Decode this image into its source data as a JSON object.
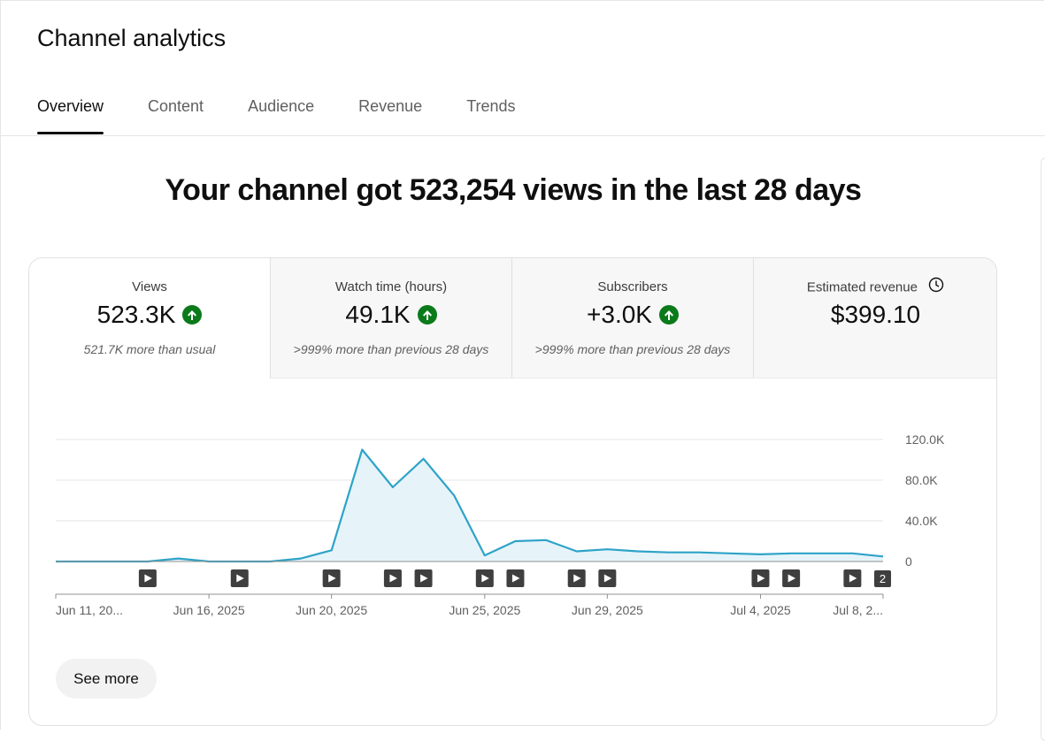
{
  "page_title": "Channel analytics",
  "tabs": [
    {
      "label": "Overview",
      "active": true
    },
    {
      "label": "Content",
      "active": false
    },
    {
      "label": "Audience",
      "active": false
    },
    {
      "label": "Revenue",
      "active": false
    },
    {
      "label": "Trends",
      "active": false
    }
  ],
  "headline": "Your channel got 523,254 views in the last 28 days",
  "metrics": [
    {
      "label": "Views",
      "value": "523.3K",
      "trend": "up",
      "sub": "521.7K more than usual"
    },
    {
      "label": "Watch time (hours)",
      "value": "49.1K",
      "trend": "up",
      "sub": ">999% more than previous 28 days"
    },
    {
      "label": "Subscribers",
      "value": "+3.0K",
      "trend": "up",
      "sub": ">999% more than previous 28 days"
    },
    {
      "label": "Estimated revenue",
      "value": "$399.10",
      "icon": "clock-icon"
    }
  ],
  "colors": {
    "line": "#2ea3c8",
    "area": "#e6f4fa",
    "trend_up": "#0b7a1a"
  },
  "chart_data": {
    "type": "area",
    "series": [
      {
        "values": [
          0,
          0,
          0,
          0,
          3000,
          0,
          0,
          0,
          3000,
          11000,
          110000,
          73000,
          101000,
          65000,
          6000,
          20000,
          21000,
          10000,
          12000,
          10000,
          9000,
          9000,
          8000,
          7000,
          8000,
          8000,
          8000,
          5000
        ]
      }
    ],
    "y_ticks": [
      "120.0K",
      "80.0K",
      "40.0K",
      "0"
    ],
    "y_tick_values": [
      120000,
      80000,
      40000,
      0
    ],
    "ylim": [
      0,
      120000
    ],
    "x_tick_labels": [
      {
        "index": 0,
        "label": "Jun 11, 20..."
      },
      {
        "index": 5,
        "label": "Jun 16, 2025"
      },
      {
        "index": 9,
        "label": "Jun 20, 2025"
      },
      {
        "index": 14,
        "label": "Jun 25, 2025"
      },
      {
        "index": 18,
        "label": "Jun 29, 2025"
      },
      {
        "index": 23,
        "label": "Jul 4, 2025"
      },
      {
        "index": 27,
        "label": "Jul 8, 2..."
      }
    ],
    "upload_markers": [
      3,
      6,
      9,
      11,
      12,
      14,
      15,
      17,
      18,
      23,
      24,
      26
    ],
    "upload_marker_count_label": {
      "index": 27,
      "label": "2"
    },
    "grid": true
  },
  "see_more_label": "See more"
}
